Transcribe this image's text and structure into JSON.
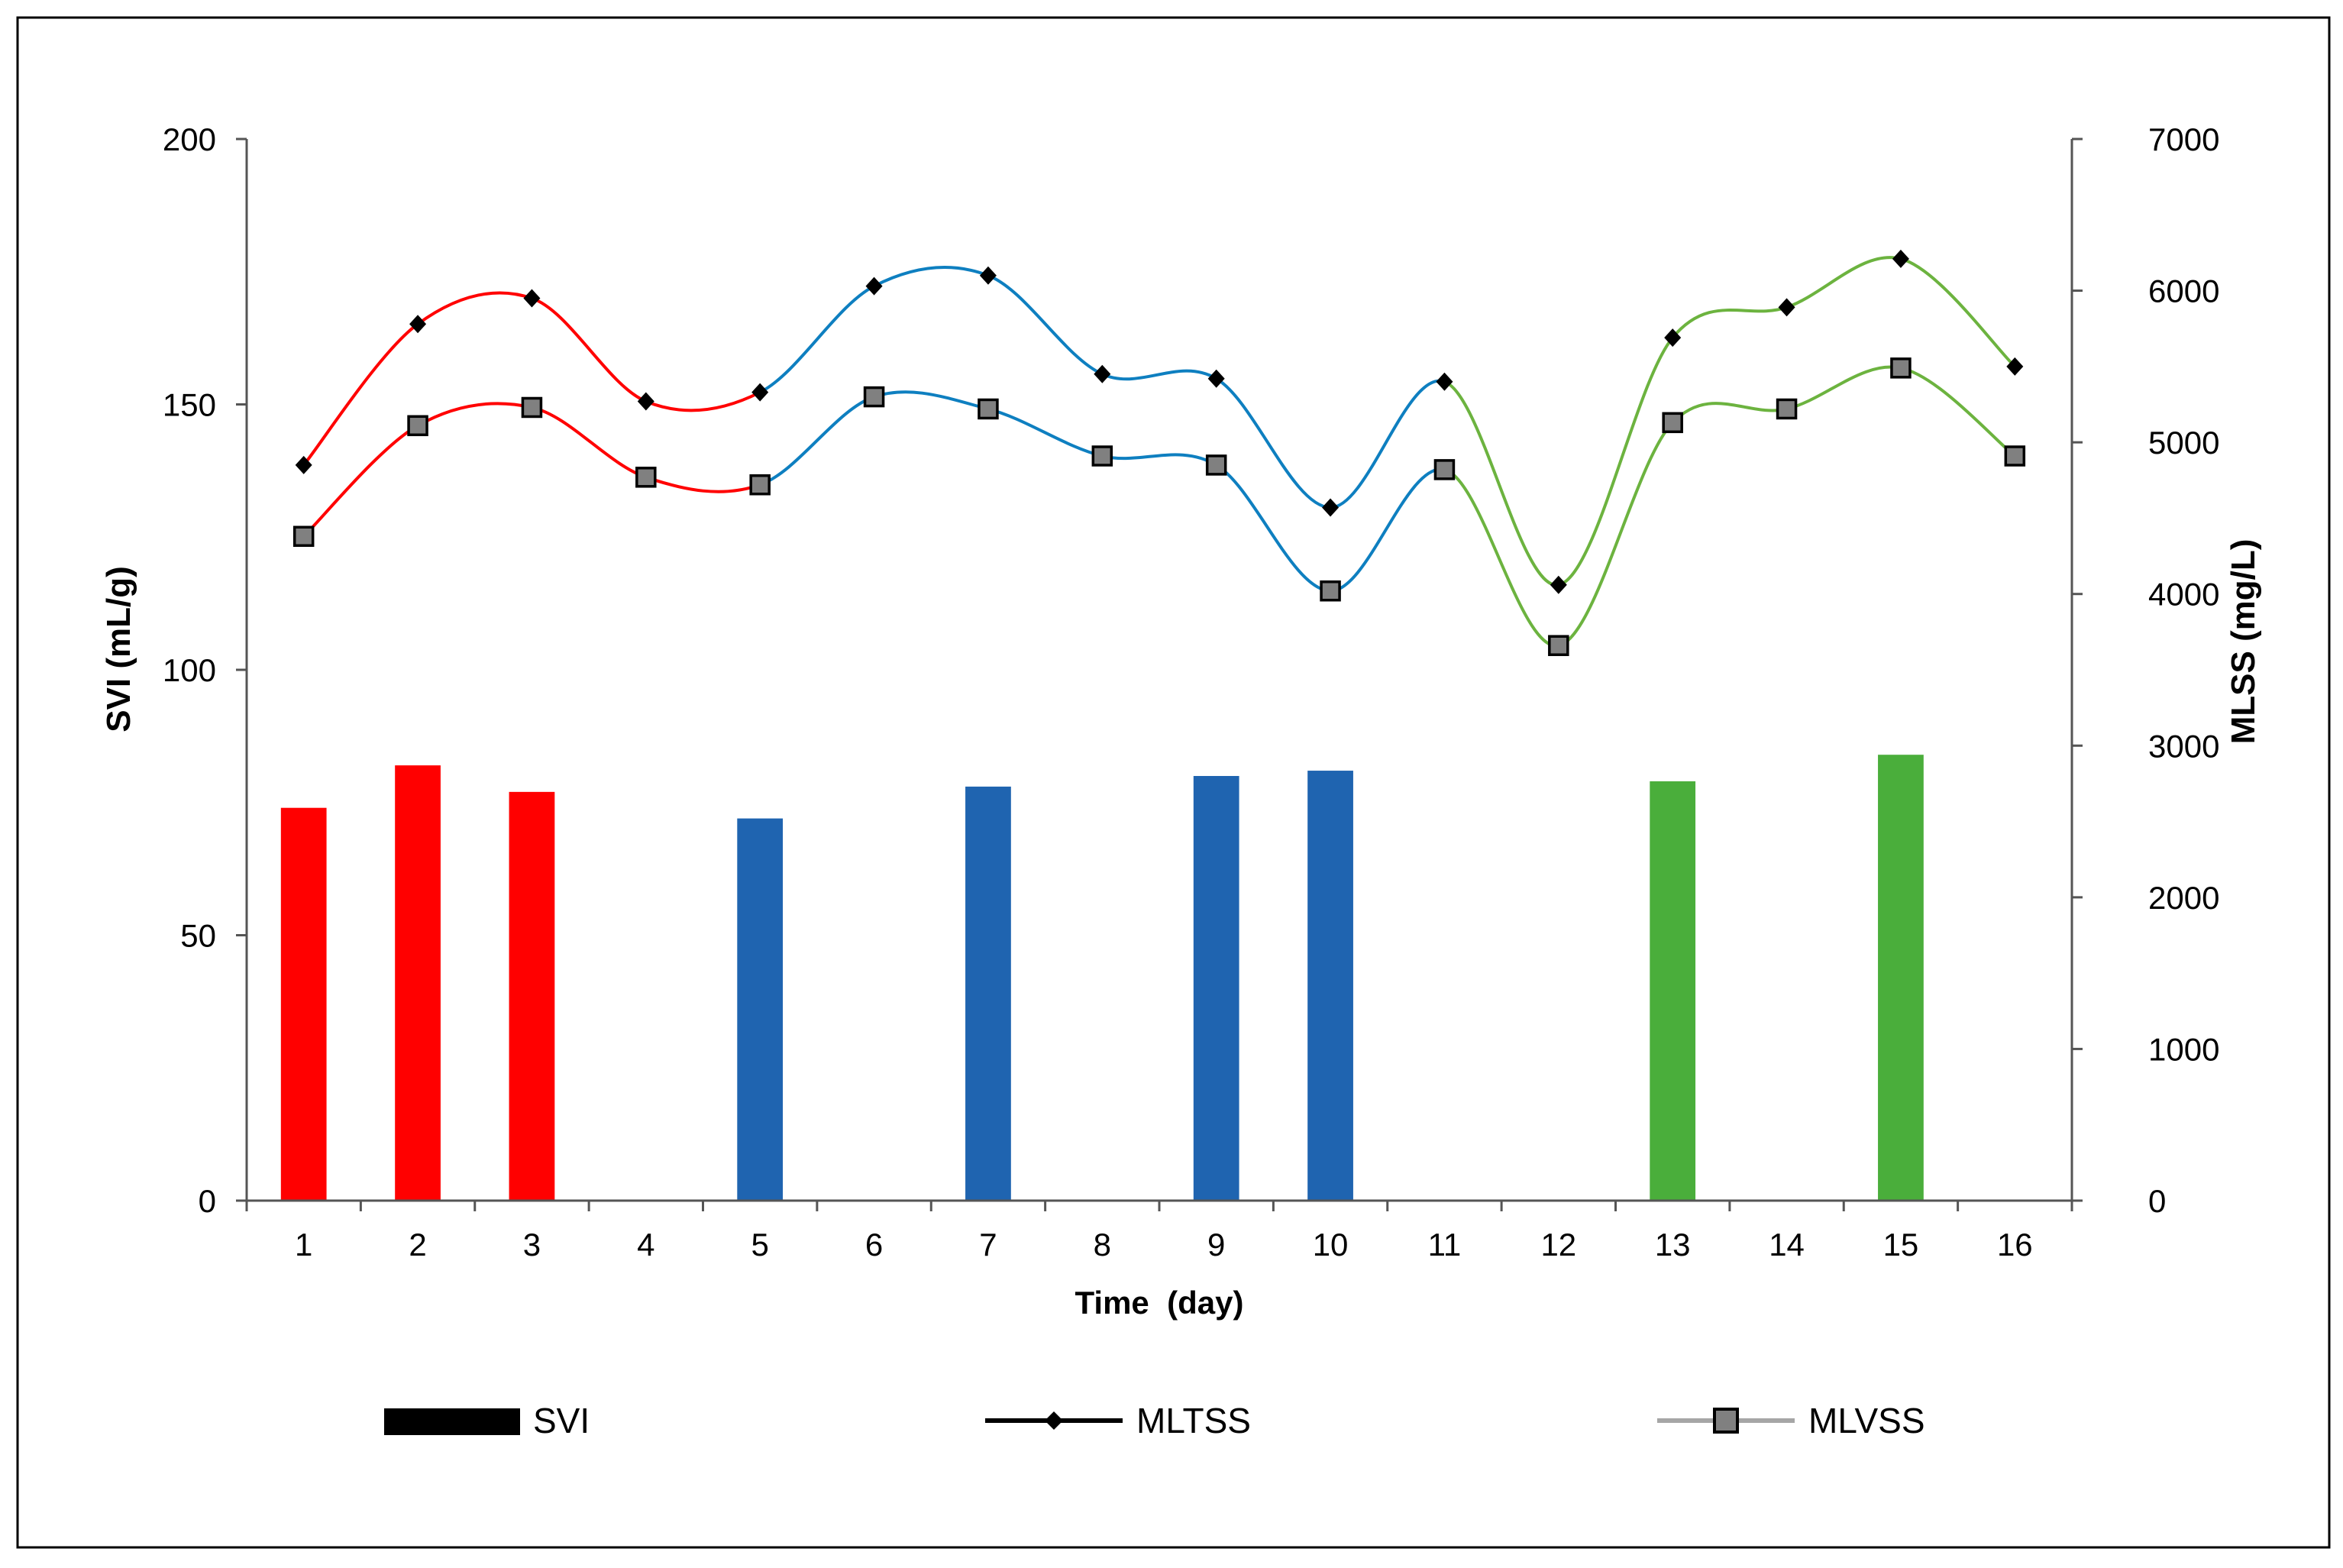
{
  "chart_data": {
    "type": "bar+line",
    "xlabel": "Time  (day)",
    "ylabel_left": "SVI (mL/g)",
    "ylabel_right": "MLSS (mg/L)",
    "categories": [
      "1",
      "2",
      "3",
      "4",
      "5",
      "6",
      "7",
      "8",
      "9",
      "10",
      "11",
      "12",
      "13",
      "14",
      "15",
      "16"
    ],
    "ylim_left": [
      0,
      200
    ],
    "yticks_left": [
      0,
      50,
      100,
      150,
      200
    ],
    "ylim_right": [
      0,
      7000
    ],
    "yticks_right": [
      0,
      1000,
      2000,
      3000,
      4000,
      5000,
      6000,
      7000
    ],
    "grid": false,
    "legend_position": "bottom",
    "series": [
      {
        "name": "SVI",
        "kind": "bar",
        "axis": "left",
        "values": [
          74,
          82,
          77,
          null,
          72,
          null,
          78,
          null,
          80,
          81,
          null,
          null,
          79,
          null,
          84,
          null
        ]
      },
      {
        "name": "MLTSS",
        "kind": "line",
        "marker": "diamond",
        "axis": "right",
        "values": [
          4850,
          5780,
          5950,
          5270,
          5330,
          6030,
          6100,
          5450,
          5420,
          4570,
          5400,
          4060,
          5690,
          5890,
          6210,
          5500
        ]
      },
      {
        "name": "MLVSS",
        "kind": "line",
        "marker": "square",
        "axis": "right",
        "values": [
          4380,
          5110,
          5230,
          4770,
          4720,
          5300,
          5220,
          4910,
          4850,
          4020,
          4820,
          3660,
          5130,
          5220,
          5490,
          4910
        ]
      }
    ],
    "phase_colors": {
      "red": "#ff0000",
      "blue": "#1f64b0",
      "line_blue": "#0e7fc0",
      "green": "#4aae3b",
      "line_green": "#6cb33f"
    },
    "phases": [
      {
        "color": "red",
        "from": 1,
        "to": 5
      },
      {
        "color": "blue",
        "from": 5,
        "to": 11
      },
      {
        "color": "green",
        "from": 11,
        "to": 16
      }
    ],
    "legend": [
      {
        "label": "SVI",
        "icon": "bar-swatch"
      },
      {
        "label": "MLTSS",
        "icon": "line-diamond"
      },
      {
        "label": "MLVSS",
        "icon": "line-square"
      }
    ]
  }
}
